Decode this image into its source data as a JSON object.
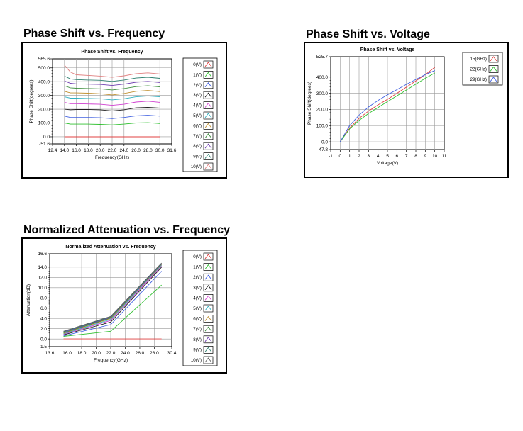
{
  "headings": {
    "chart1": "Phase Shift vs. Frequency",
    "chart2": "Phase Shift vs. Voltage",
    "chart3": "Normalized Attenuation vs. Frequency"
  },
  "chart_data": [
    {
      "type": "line",
      "title": "Phase Shift vs. Frequency",
      "xlabel": "Frequency(GHz)",
      "ylabel": "Phase Shift(degrees)",
      "xlim": [
        12.4,
        31.6
      ],
      "ylim": [
        -51.6,
        565.6
      ],
      "x_ticks": [
        "12.4",
        "14.0",
        "16.0",
        "18.0",
        "20.0",
        "22.0",
        "24.0",
        "26.0",
        "28.0",
        "30.0",
        "31.6"
      ],
      "y_ticks": [
        "565.6",
        "500.0",
        "400.0",
        "300.0",
        "200.0",
        "100.0",
        "0.0",
        "-51.6"
      ],
      "legend_position": "right",
      "x": [
        14,
        15,
        16,
        18,
        20,
        22,
        24,
        26,
        28,
        30
      ],
      "series": [
        {
          "name": "0(V)",
          "color": "#e04040",
          "values": [
            0,
            0,
            0,
            0,
            0,
            0,
            0,
            0,
            0,
            0
          ]
        },
        {
          "name": "1(V)",
          "color": "#30c030",
          "values": [
            100,
            92,
            92,
            92,
            90,
            86,
            92,
            100,
            102,
            96
          ]
        },
        {
          "name": "2(V)",
          "color": "#4060e0",
          "values": [
            150,
            140,
            140,
            140,
            138,
            132,
            140,
            152,
            156,
            150
          ]
        },
        {
          "name": "3(V)",
          "color": "#202020",
          "values": [
            200,
            196,
            198,
            198,
            196,
            188,
            196,
            210,
            214,
            208
          ]
        },
        {
          "name": "4(V)",
          "color": "#d040d0",
          "values": [
            250,
            240,
            240,
            238,
            236,
            228,
            236,
            252,
            258,
            250
          ]
        },
        {
          "name": "5(V)",
          "color": "#30b0c0",
          "values": [
            290,
            280,
            280,
            278,
            276,
            268,
            276,
            290,
            296,
            290
          ]
        },
        {
          "name": "6(V)",
          "color": "#c09030",
          "values": [
            330,
            318,
            318,
            316,
            312,
            304,
            314,
            330,
            336,
            328
          ]
        },
        {
          "name": "7(V)",
          "color": "#409040",
          "values": [
            370,
            355,
            352,
            350,
            348,
            340,
            350,
            364,
            370,
            362
          ]
        },
        {
          "name": "8(V)",
          "color": "#7040b0",
          "values": [
            405,
            388,
            384,
            382,
            380,
            372,
            382,
            396,
            402,
            394
          ]
        },
        {
          "name": "9(V)",
          "color": "#308070",
          "values": [
            440,
            420,
            415,
            412,
            410,
            402,
            412,
            426,
            432,
            424
          ]
        },
        {
          "name": "10(V)",
          "color": "#e08080",
          "values": [
            520,
            470,
            450,
            445,
            440,
            432,
            442,
            458,
            464,
            456
          ]
        }
      ]
    },
    {
      "type": "line",
      "title": "Phase Shift vs. Voltage",
      "xlabel": "Voltage(V)",
      "ylabel": "Phase Shift(degrees)",
      "xlim": [
        -1,
        11
      ],
      "ylim": [
        -47.8,
        525.7
      ],
      "x_ticks": [
        "-1",
        "0",
        "1",
        "2",
        "3",
        "4",
        "5",
        "6",
        "7",
        "8",
        "9",
        "10",
        "11"
      ],
      "y_ticks": [
        "525.7",
        "400.0",
        "300.0",
        "200.0",
        "100.0",
        "0.0",
        "-47.8"
      ],
      "legend_position": "right",
      "x": [
        0,
        1,
        2,
        3,
        4,
        5,
        6,
        7,
        8,
        9,
        10
      ],
      "series": [
        {
          "name": "15(GHz)",
          "color": "#e04040",
          "values": [
            0,
            85,
            145,
            190,
            228,
            262,
            300,
            338,
            376,
            415,
            460
          ]
        },
        {
          "name": "22(GHz)",
          "color": "#30c030",
          "values": [
            0,
            80,
            132,
            175,
            212,
            248,
            284,
            320,
            356,
            392,
            425
          ]
        },
        {
          "name": "29(GHz)",
          "color": "#4060e0",
          "values": [
            0,
            100,
            165,
            215,
            255,
            290,
            322,
            355,
            385,
            415,
            440
          ]
        }
      ]
    },
    {
      "type": "line",
      "title": "Normalized Attenuation vs. Frequency",
      "xlabel": "Frequency(GHz)",
      "ylabel": "Attenuation(dB)",
      "xlim": [
        13.6,
        30.4
      ],
      "ylim": [
        -1.5,
        16.6
      ],
      "x_ticks": [
        "13.6",
        "16.0",
        "18.0",
        "20.0",
        "22.0",
        "24.0",
        "26.0",
        "28.0",
        "30.4"
      ],
      "y_ticks": [
        "16.6",
        "14.0",
        "12.0",
        "10.0",
        "8.0",
        "6.0",
        "4.0",
        "2.0",
        "0.0",
        "-1.5"
      ],
      "legend_position": "right",
      "x": [
        15.5,
        22,
        29
      ],
      "series": [
        {
          "name": "0(V)",
          "color": "#e04040",
          "values": [
            0,
            0,
            0
          ]
        },
        {
          "name": "1(V)",
          "color": "#30c030",
          "values": [
            0.5,
            1.5,
            10.5
          ]
        },
        {
          "name": "2(V)",
          "color": "#4060e0",
          "values": [
            0.6,
            2.8,
            13.2
          ]
        },
        {
          "name": "3(V)",
          "color": "#202020",
          "values": [
            0.8,
            3.3,
            14.0
          ]
        },
        {
          "name": "4(V)",
          "color": "#d040d0",
          "values": [
            0.9,
            3.6,
            14.2
          ]
        },
        {
          "name": "5(V)",
          "color": "#30b0c0",
          "values": [
            1.0,
            3.8,
            14.4
          ]
        },
        {
          "name": "6(V)",
          "color": "#c09030",
          "values": [
            1.1,
            4.0,
            14.5
          ]
        },
        {
          "name": "7(V)",
          "color": "#409040",
          "values": [
            1.2,
            4.1,
            14.6
          ]
        },
        {
          "name": "8(V)",
          "color": "#7040b0",
          "values": [
            1.3,
            4.2,
            14.6
          ]
        },
        {
          "name": "9(V)",
          "color": "#308070",
          "values": [
            1.4,
            4.3,
            14.7
          ]
        },
        {
          "name": "10(V)",
          "color": "#606060",
          "values": [
            1.5,
            4.4,
            14.8
          ]
        }
      ]
    }
  ]
}
